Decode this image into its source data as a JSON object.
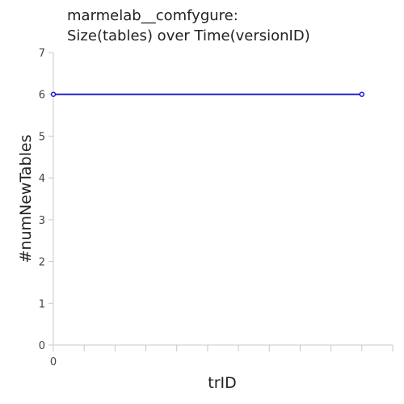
{
  "chart_data": {
    "type": "line",
    "title_lines": [
      "marmelab__comfygure:",
      "Size(tables) over Time(versionID)"
    ],
    "xlabel": "trID",
    "ylabel": "#numNewTables",
    "x": [
      0,
      10
    ],
    "series": [
      {
        "values": [
          6,
          6
        ],
        "color": "#1f1fd0"
      }
    ],
    "xlim": [
      0,
      11
    ],
    "ylim": [
      0,
      7
    ],
    "y_ticks": [
      0,
      1,
      2,
      3,
      4,
      5,
      6,
      7
    ],
    "x_tick_labels": [
      {
        "value": 0,
        "label": "0"
      }
    ],
    "x_minor_ticks": [
      0,
      1,
      2,
      3,
      4,
      5,
      6,
      7,
      8,
      9,
      10,
      11
    ],
    "grid": false,
    "legend": "none"
  }
}
